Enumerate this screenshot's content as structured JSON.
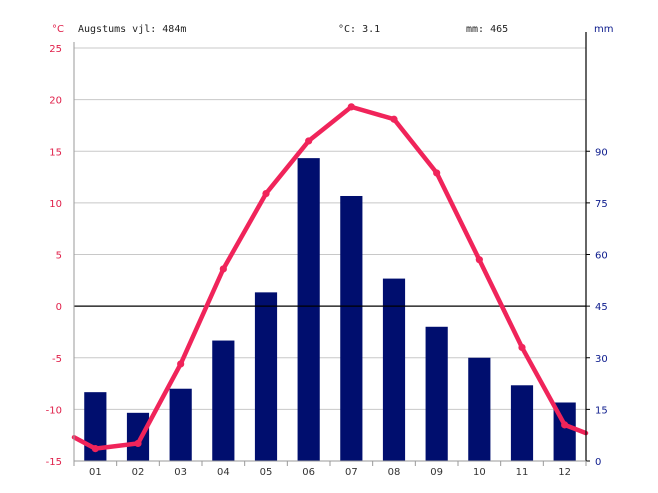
{
  "header": {
    "left_unit": "°C",
    "altitude": "Augstums vjl: 484m",
    "temp_avg": "°C: 3.1",
    "precip_total": "mm: 465",
    "right_unit": "mm"
  },
  "colors": {
    "temperature": "#f0245a",
    "precipitation": "#000e6e",
    "left_axis": "#e0204a",
    "right_axis": "#0b1a8c",
    "grid": "#c8c8c8",
    "zero_line": "#000000"
  },
  "chart_data": {
    "type": "bar",
    "categories": [
      "01",
      "02",
      "03",
      "04",
      "05",
      "06",
      "07",
      "08",
      "09",
      "10",
      "11",
      "12"
    ],
    "series": [
      {
        "kind": "bar",
        "axis": "right",
        "values": [
          20,
          14,
          21,
          35,
          49,
          88,
          77,
          53,
          39,
          30,
          22,
          17
        ]
      },
      {
        "kind": "line",
        "axis": "left",
        "values": [
          -13.8,
          -13.3,
          -5.6,
          3.6,
          10.9,
          16.0,
          19.3,
          18.1,
          12.9,
          4.5,
          -4.0,
          -11.5
        ],
        "edge_left": -12.7,
        "edge_right": -12.3
      }
    ],
    "y_left": {
      "range": [
        -15,
        25
      ],
      "ticks": [
        "25",
        "20",
        "15",
        "10",
        "5",
        "0",
        "-5",
        "-10",
        "-15"
      ]
    },
    "y_right": {
      "range": [
        0,
        120
      ],
      "ticks": [
        "90",
        "75",
        "60",
        "45",
        "30",
        "15",
        "0"
      ]
    },
    "grid": true
  }
}
